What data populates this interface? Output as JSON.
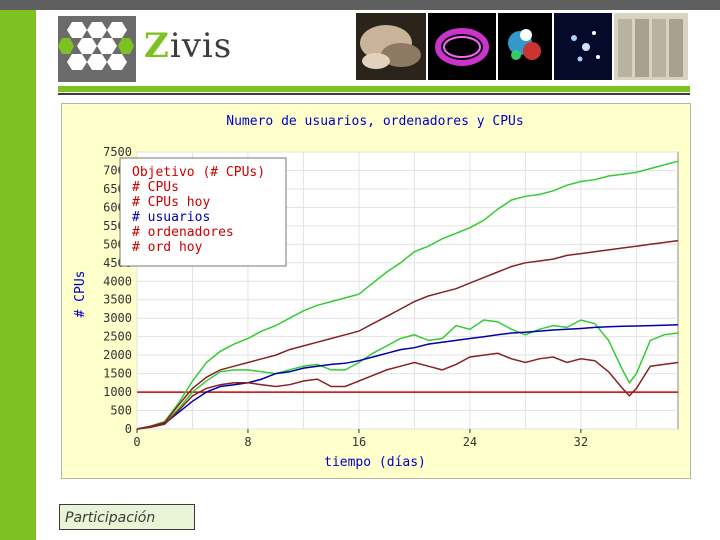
{
  "brand": {
    "letter": "Z",
    "rest": "ivis"
  },
  "caption": "Participación",
  "colors": {
    "accent_green": "#7dc123",
    "top_bar": "#5f5f5f",
    "plot_bg": "#ffffcc",
    "title_blue": "#0000cc"
  },
  "chart_data": {
    "type": "line",
    "title": "Numero de usuarios, ordenadores y CPUs",
    "xlabel": "tiempo (días)",
    "ylabel": "# CPUs",
    "xlim": [
      0,
      39
    ],
    "ylim": [
      0,
      7500
    ],
    "xticks": [
      "0",
      "8",
      "16",
      "24",
      "32"
    ],
    "yticks": [
      "0",
      "500",
      "1000",
      "1500",
      "2000",
      "2500",
      "3000",
      "3500",
      "4000",
      "4500",
      "5000",
      "5500",
      "6000",
      "6500",
      "7000",
      "7500"
    ],
    "grid": true,
    "legend_position": "top-left",
    "series": [
      {
        "name": "Objetivo (# CPUs)",
        "color": "#cc0000",
        "x": [
          0,
          39
        ],
        "y": [
          1000,
          1000
        ]
      },
      {
        "name": "# CPUs",
        "color": "#33cc33",
        "x": [
          0,
          1,
          2,
          3,
          4,
          5,
          6,
          7,
          8,
          9,
          10,
          11,
          12,
          13,
          14,
          15,
          16,
          17,
          18,
          19,
          20,
          21,
          22,
          23,
          24,
          25,
          26,
          27,
          28,
          29,
          30,
          31,
          32,
          33,
          34,
          35,
          36,
          37,
          38,
          39
        ],
        "y": [
          0,
          80,
          200,
          700,
          1300,
          1800,
          2100,
          2300,
          2450,
          2650,
          2800,
          3000,
          3200,
          3350,
          3450,
          3550,
          3650,
          3950,
          4250,
          4500,
          4800,
          4950,
          5150,
          5300,
          5450,
          5650,
          5950,
          6200,
          6300,
          6350,
          6450,
          6600,
          6700,
          6750,
          6850,
          6900,
          6950,
          7050,
          7150,
          7250
        ]
      },
      {
        "name": "# CPUs hoy",
        "color": "#33cc33",
        "x": [
          0,
          1,
          2,
          3,
          4,
          5,
          6,
          7,
          8,
          9,
          10,
          11,
          12,
          13,
          14,
          15,
          16,
          17,
          18,
          19,
          20,
          21,
          22,
          23,
          24,
          25,
          26,
          27,
          28,
          29,
          30,
          31,
          32,
          33,
          34,
          35,
          35.5,
          36,
          37,
          38,
          39
        ],
        "y": [
          0,
          60,
          150,
          550,
          1000,
          1300,
          1550,
          1600,
          1600,
          1550,
          1500,
          1600,
          1700,
          1750,
          1600,
          1600,
          1800,
          2050,
          2250,
          2450,
          2550,
          2400,
          2450,
          2800,
          2700,
          2950,
          2900,
          2700,
          2550,
          2700,
          2800,
          2750,
          2950,
          2850,
          2400,
          1600,
          1250,
          1500,
          2400,
          2550,
          2600
        ]
      },
      {
        "name": "# usuarios",
        "color": "#0000aa",
        "x": [
          0,
          1,
          2,
          3,
          4,
          5,
          6,
          7,
          8,
          9,
          10,
          11,
          12,
          13,
          14,
          15,
          16,
          17,
          18,
          19,
          20,
          21,
          22,
          23,
          24,
          25,
          26,
          27,
          28,
          29,
          30,
          31,
          32,
          33,
          34,
          35,
          36,
          37,
          38,
          39
        ],
        "y": [
          0,
          60,
          150,
          450,
          750,
          1000,
          1150,
          1200,
          1250,
          1350,
          1500,
          1550,
          1650,
          1700,
          1750,
          1780,
          1850,
          1950,
          2050,
          2150,
          2200,
          2300,
          2350,
          2400,
          2450,
          2500,
          2550,
          2600,
          2620,
          2650,
          2680,
          2700,
          2720,
          2750,
          2770,
          2780,
          2790,
          2800,
          2810,
          2820
        ]
      },
      {
        "name": "# ordenadores",
        "color": "#882222",
        "x": [
          0,
          1,
          2,
          3,
          4,
          5,
          6,
          7,
          8,
          9,
          10,
          11,
          12,
          13,
          14,
          15,
          16,
          17,
          18,
          19,
          20,
          21,
          22,
          23,
          24,
          25,
          26,
          27,
          28,
          29,
          30,
          31,
          32,
          33,
          34,
          35,
          36,
          37,
          38,
          39
        ],
        "y": [
          0,
          70,
          180,
          650,
          1100,
          1400,
          1600,
          1700,
          1800,
          1900,
          2000,
          2150,
          2250,
          2350,
          2450,
          2550,
          2650,
          2850,
          3050,
          3250,
          3450,
          3600,
          3700,
          3800,
          3950,
          4100,
          4250,
          4400,
          4500,
          4550,
          4600,
          4700,
          4750,
          4800,
          4850,
          4900,
          4950,
          5000,
          5050,
          5100
        ]
      },
      {
        "name": "# ord hoy",
        "color": "#882222",
        "x": [
          0,
          1,
          2,
          3,
          4,
          5,
          6,
          7,
          8,
          9,
          10,
          11,
          12,
          13,
          14,
          15,
          16,
          17,
          18,
          19,
          20,
          21,
          22,
          23,
          24,
          25,
          26,
          27,
          28,
          29,
          30,
          31,
          32,
          33,
          34,
          35,
          35.5,
          36,
          37,
          38,
          39
        ],
        "y": [
          0,
          50,
          130,
          500,
          900,
          1100,
          1200,
          1250,
          1250,
          1200,
          1150,
          1200,
          1300,
          1350,
          1150,
          1150,
          1300,
          1450,
          1600,
          1700,
          1800,
          1700,
          1600,
          1750,
          1950,
          2000,
          2050,
          1900,
          1800,
          1900,
          1950,
          1800,
          1900,
          1850,
          1550,
          1100,
          900,
          1100,
          1700,
          1750,
          1800
        ]
      }
    ]
  }
}
